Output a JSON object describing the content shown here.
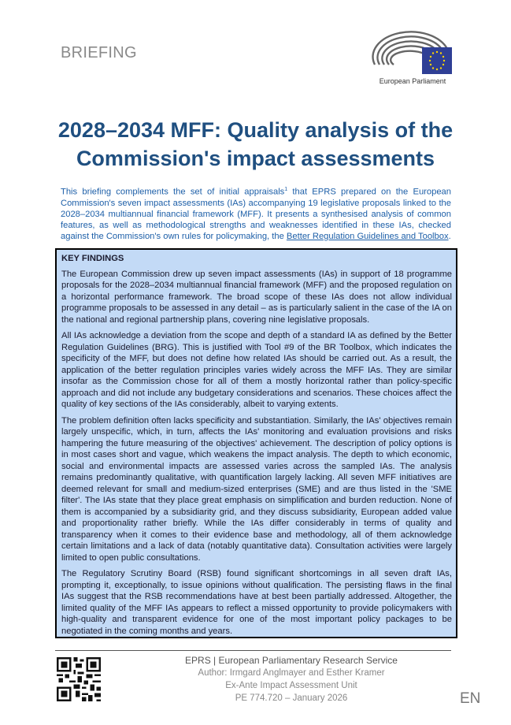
{
  "header": {
    "label": "BRIEFING",
    "logo_text": "European Parliament",
    "colors": {
      "flag": "#2f3f95",
      "stars": "#ffd400"
    }
  },
  "title": "2028–2034 MFF: Quality analysis of the Commission's impact assessments",
  "intro": {
    "text_before": "This briefing complements the set of initial appraisals",
    "footnote": "1",
    "text_after": " that EPRS prepared on the European Commission's seven impact assessments (IAs) accompanying 19 legislative proposals linked to the 2028–2034 multiannual financial framework (MFF). It presents a synthesised analysis of common features, as well as methodological strengths and weaknesses identified in these IAs, checked against the Commission's own rules for policymaking, the ",
    "link": "Better Regulation Guidelines and Toolbox",
    "end": "."
  },
  "key_findings": {
    "heading": "KEY FINDINGS",
    "paragraphs": [
      "The European Commission drew up seven impact assessments (IAs) in support of 18 programme proposals for the 2028–2034 multiannual financial framework (MFF) and the proposed regulation on a horizontal performance framework. The broad scope of these IAs does not allow individual programme proposals to be assessed in any detail – as is particularly salient in the case of the IA on the national and regional partnership plans, covering nine legislative proposals.",
      "All IAs acknowledge a deviation from the scope and depth of a standard IA as defined by the Better Regulation Guidelines (BRG). This is justified with Tool #9 of the BR Toolbox, which indicates the specificity of the MFF, but does not define how related IAs should be carried out. As a result, the application of the better regulation principles varies widely across the MFF IAs. They are similar insofar as the Commission chose for all of them a mostly horizontal rather than policy-specific approach and did not include any budgetary considerations and scenarios. These choices affect the quality of key sections of the IAs considerably, albeit to varying extents.",
      "The problem definition often lacks specificity and substantiation. Similarly, the IAs' objectives remain largely unspecific, which, in turn, affects the IAs' monitoring and evaluation provisions and risks hampering the future measuring of the objectives' achievement. The description of policy options is in most cases short and vague, which weakens the impact analysis. The depth to which economic, social and environmental impacts are assessed varies across the sampled IAs. The analysis remains predominantly qualitative, with quantification largely lacking. All seven MFF initiatives are deemed relevant for small and medium-sized enterprises (SME) and are thus listed in the 'SME filter'. The IAs state that they place great emphasis on simplification and burden reduction. None of them is accompanied by a subsidiarity grid, and they discuss subsidiarity, European added value and proportionality rather briefly. While the IAs differ considerably in terms of quality and transparency when it comes to their evidence base and methodology, all of them acknowledge certain limitations and a lack of data (notably quantitative data). Consultation activities were largely limited to open public consultations.",
      "The Regulatory Scrutiny Board (RSB) found significant shortcomings in all seven draft IAs, prompting it, exceptionally, to issue opinions without qualification. The persisting flaws in the final IAs suggest that the RSB recommendations have at best been partially addressed. Altogether, the limited quality of the MFF IAs appears to reflect a missed opportunity to provide policymakers with high-quality and transparent evidence for one of the most important policy packages to be negotiated in the coming months and years."
    ]
  },
  "footer": {
    "org": "EPRS | European Parliamentary Research Service",
    "author": "Author: Irmgard Anglmayer and Esther Kramer",
    "unit": "Ex-Ante Impact Assessment Unit",
    "ref": "PE 774.720 – January 2026",
    "language": "EN"
  }
}
